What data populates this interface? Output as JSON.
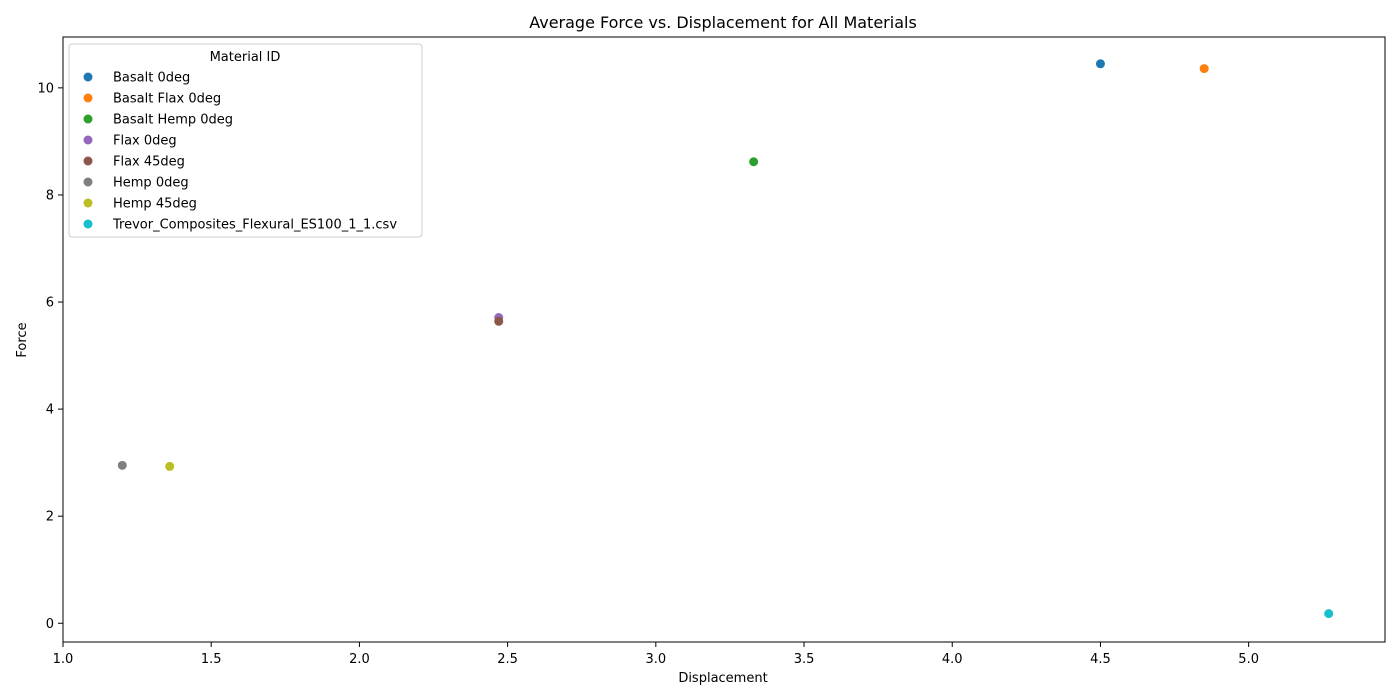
{
  "chart_data": {
    "type": "scatter",
    "title": "Average Force vs. Displacement for All Materials",
    "xlabel": "Displacement",
    "ylabel": "Force",
    "xlim": [
      1.0,
      5.46
    ],
    "ylim": [
      -0.35,
      10.95
    ],
    "xticks": [
      1.0,
      1.5,
      2.0,
      2.5,
      3.0,
      3.5,
      4.0,
      4.5,
      5.0
    ],
    "xtick_labels": [
      "1.0",
      "1.5",
      "2.0",
      "2.5",
      "3.0",
      "3.5",
      "4.0",
      "4.5",
      "5.0"
    ],
    "yticks": [
      0,
      2,
      4,
      6,
      8,
      10
    ],
    "ytick_labels": [
      "0",
      "2",
      "4",
      "6",
      "8",
      "10"
    ],
    "grid": false,
    "legend": {
      "title": "Material ID",
      "placement": "top-left"
    },
    "series": [
      {
        "name": "Basalt 0deg",
        "color": "#1f77b4",
        "x": [
          4.5
        ],
        "y": [
          10.45
        ]
      },
      {
        "name": "Basalt Flax 0deg",
        "color": "#ff7f0e",
        "x": [
          4.85
        ],
        "y": [
          10.36
        ]
      },
      {
        "name": "Basalt Hemp 0deg",
        "color": "#2ca02c",
        "x": [
          3.33
        ],
        "y": [
          8.62
        ]
      },
      {
        "name": "Flax 0deg",
        "color": "#9467bd",
        "x": [
          2.47
        ],
        "y": [
          5.71
        ]
      },
      {
        "name": "Flax 45deg",
        "color": "#8c564b",
        "x": [
          2.47
        ],
        "y": [
          5.64
        ]
      },
      {
        "name": "Hemp 0deg",
        "color": "#7f7f7f",
        "x": [
          1.2
        ],
        "y": [
          2.95
        ]
      },
      {
        "name": "Hemp 45deg",
        "color": "#bcbd22",
        "x": [
          1.36
        ],
        "y": [
          2.93
        ]
      },
      {
        "name": "Trevor_Composites_Flexural_ES100_1_1.csv",
        "color": "#17becf",
        "x": [
          5.27
        ],
        "y": [
          0.18
        ]
      }
    ]
  }
}
